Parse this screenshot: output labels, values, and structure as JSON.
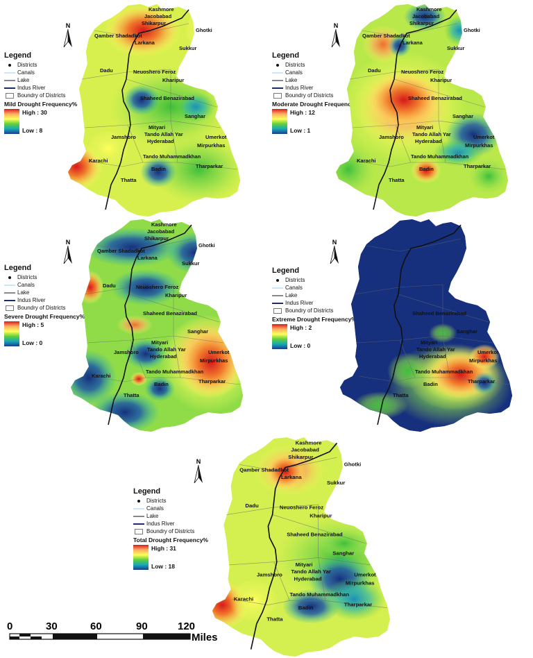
{
  "legend": {
    "title": "Legend",
    "items": [
      {
        "label": "Districts",
        "symbol": "dot"
      },
      {
        "label": "Canals",
        "symbol": "canal-line"
      },
      {
        "label": "Lake",
        "symbol": "lake-line"
      },
      {
        "label": "Indus River",
        "symbol": "river-line"
      },
      {
        "label": "Boundry of Districts",
        "symbol": "box"
      }
    ]
  },
  "north_label": "N",
  "panels": [
    {
      "id": "mild",
      "ramp_title": "Mild Drought Frequency%",
      "high": "High : 30",
      "low": "Low : 8"
    },
    {
      "id": "moderate",
      "ramp_title": "Moderate Drought Frequency%",
      "high": "High : 12",
      "low": "Low : 1"
    },
    {
      "id": "severe",
      "ramp_title": "Severe Drought Frequency%",
      "high": "High : 5",
      "low": "Low : 0"
    },
    {
      "id": "extreme",
      "ramp_title": "Extreme Drought Frequency%",
      "high": "High : 2",
      "low": "Low : 0"
    },
    {
      "id": "total",
      "ramp_title": "Total Drought Frequency%",
      "high": "High : 31",
      "low": "Low : 18"
    }
  ],
  "districts": [
    "Kashmore",
    "Jacobabad",
    "Shikarpur",
    "Ghotki",
    "Qamber Shadadkot",
    "Larkana",
    "Sukkur",
    "Dadu",
    "Neuoshero Feroz",
    "Kharipur",
    "Shaheed Benazirabad",
    "Sanghar",
    "Mityari",
    "Tando Allah Yar",
    "Hyderabad",
    "Jamshoro",
    "Umerkot",
    "Mirpurkhas",
    "Tando Muhammadkhan",
    "Karachi",
    "Badin",
    "Thatta",
    "Tharparkar"
  ],
  "scale": {
    "ticks": [
      "0",
      "30",
      "60",
      "90",
      "120"
    ],
    "unit": "Miles"
  },
  "colors": {
    "high": "#d7191c",
    "mid": "#ffff5a",
    "low": "#1a3a8f",
    "river": "#111111"
  }
}
